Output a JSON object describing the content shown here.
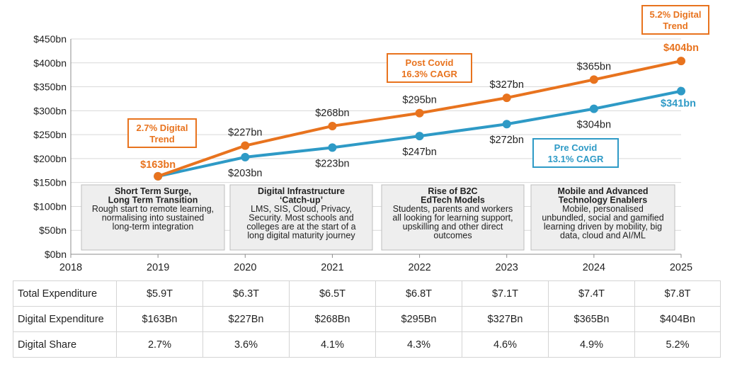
{
  "chart_data": {
    "type": "line",
    "x": [
      2019,
      2020,
      2021,
      2022,
      2023,
      2024,
      2025
    ],
    "xlim": [
      2018,
      2025
    ],
    "x_tick_labels": [
      "2018",
      "2019",
      "2020",
      "2021",
      "2022",
      "2023",
      "2024",
      "2025"
    ],
    "ylim": [
      0,
      450
    ],
    "y_tick_labels": [
      "$0bn",
      "$50bn",
      "$100bn",
      "$150bn",
      "$200bn",
      "$250bn",
      "$300bn",
      "$350bn",
      "$400bn",
      "$450bn"
    ],
    "grid": true,
    "series": [
      {
        "name": "Post Covid",
        "color": "#E8731E",
        "values": [
          163,
          227,
          268,
          295,
          327,
          365,
          404
        ],
        "labels": [
          "$163bn",
          "$227bn",
          "$268bn",
          "$295bn",
          "$327bn",
          "$365bn",
          "$404bn"
        ]
      },
      {
        "name": "Pre Covid",
        "color": "#2E9AC6",
        "values": [
          163,
          203,
          223,
          247,
          272,
          304,
          341
        ],
        "labels": [
          "",
          "$203bn",
          "$223bn",
          "$247bn",
          "$272bn",
          "$304bn",
          "$341bn"
        ]
      }
    ],
    "callouts": [
      {
        "text": [
          "2.7% Digital",
          "Trend"
        ],
        "color": "#E8731E"
      },
      {
        "text": [
          "Post Covid",
          "16.3% CAGR"
        ],
        "color": "#E8731E"
      },
      {
        "text": [
          "5.2% Digital",
          "Trend"
        ],
        "color": "#E8731E"
      },
      {
        "text": [
          "Pre Covid",
          "13.1% CAGR"
        ],
        "color": "#2E9AC6"
      }
    ],
    "phases": [
      {
        "title": [
          "Short Term Surge,",
          "Long Term Transition"
        ],
        "body": [
          "Rough start to remote learning,",
          "normalising into sustained",
          "long-term integration"
        ]
      },
      {
        "title": [
          "Digital Infrastructure",
          "‘Catch-up’"
        ],
        "body": [
          "LMS, SIS, Cloud, Privacy,",
          "Security. Most schools and",
          "colleges are at the start of a",
          "long digital maturity journey"
        ]
      },
      {
        "title": [
          "Rise of B2C",
          "EdTech Models"
        ],
        "body": [
          "Students, parents and workers",
          "all looking for learning support,",
          "upskilling and other direct",
          "outcomes"
        ]
      },
      {
        "title": [
          "Mobile and Advanced",
          "Technology Enablers"
        ],
        "body": [
          "Mobile, personalised",
          "unbundled, social and gamified",
          "learning driven by mobility, big",
          "data, cloud and AI/ML"
        ]
      }
    ]
  },
  "table": {
    "rows": [
      {
        "label": "Total Expenditure",
        "values": [
          "$5.9T",
          "$6.3T",
          "$6.5T",
          "$6.8T",
          "$7.1T",
          "$7.4T",
          "$7.8T"
        ]
      },
      {
        "label": "Digital Expenditure",
        "values": [
          "$163Bn",
          "$227Bn",
          "$268Bn",
          "$295Bn",
          "$327Bn",
          "$365Bn",
          "$404Bn"
        ]
      },
      {
        "label": "Digital Share",
        "values": [
          "2.7%",
          "3.6%",
          "4.1%",
          "4.3%",
          "4.6%",
          "4.9%",
          "5.2%"
        ]
      }
    ]
  }
}
